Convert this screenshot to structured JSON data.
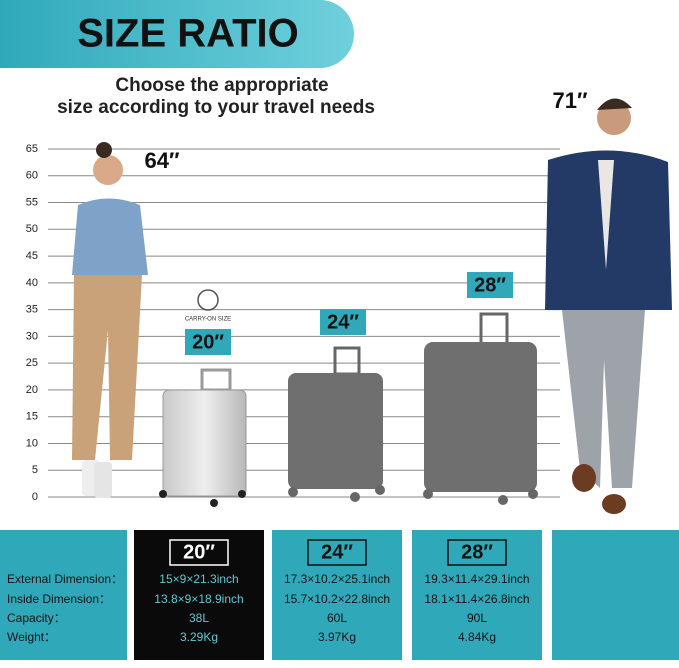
{
  "header": {
    "title": "SIZE RATIO",
    "subtitle": [
      "Choose the appropriate",
      "size according to your travel needs"
    ]
  },
  "scale": {
    "ticks": [
      "65",
      "60",
      "55",
      "50",
      "45",
      "40",
      "35",
      "30",
      "25",
      "20",
      "15",
      "10",
      "5",
      "0"
    ]
  },
  "figures": {
    "woman": "64″",
    "man": "71″"
  },
  "suitcases": {
    "badge": "CARRY-ON SIZE",
    "labels": [
      "20″",
      "24″",
      "28″"
    ]
  },
  "table": {
    "row_labels": [
      "External Dimension：",
      "Inside Dimension：",
      "Capacity：",
      "Weight："
    ],
    "columns": [
      {
        "header": "20″",
        "values": [
          "15×9×21.3inch",
          "13.8×9×18.9inch",
          "38L",
          "3.29Kg"
        ]
      },
      {
        "header": "24″",
        "values": [
          "17.3×10.2×25.1inch",
          "15.7×10.2×22.8inch",
          "60L",
          "3.97Kg"
        ]
      },
      {
        "header": "28″",
        "values": [
          "19.3×11.4×29.1inch",
          "18.1×11.4×26.8inch",
          "90L",
          "4.84Kg"
        ]
      }
    ]
  }
}
